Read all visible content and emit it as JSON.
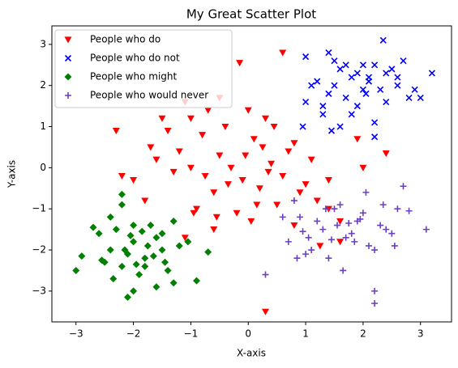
{
  "chart_data": {
    "type": "scatter",
    "title": "My Great Scatter Plot",
    "x_label": "X-axis",
    "y_label": "Y-axis",
    "xlim": [
      -3.42,
      3.54
    ],
    "ylim": [
      -3.75,
      3.45
    ],
    "xticks": [
      {
        "value": -3,
        "label": "−3"
      },
      {
        "value": -2,
        "label": "−2"
      },
      {
        "value": -1,
        "label": "−1"
      },
      0,
      1,
      2,
      3
    ],
    "yticks": [
      {
        "value": -3,
        "label": "−3"
      },
      {
        "value": -2,
        "label": "−2"
      },
      {
        "value": -1,
        "label": "−1"
      },
      0,
      1,
      2,
      3
    ],
    "legend": "upper left",
    "grid": false,
    "series": [
      {
        "name": "People who do",
        "color": "#ff0000",
        "marker": "v",
        "x": [
          -0.3,
          -0.5,
          -0.8,
          -1.0,
          -1.2,
          -0.1,
          0.2,
          0.4,
          0.6,
          0.8,
          1.0,
          1.2,
          -0.6,
          -0.9,
          -1.3,
          -1.6,
          -1.8,
          -2.0,
          -0.4,
          0.1,
          0.3,
          0.5,
          -0.2,
          -0.7,
          -1.1,
          -1.4,
          0.7,
          0.9,
          1.1,
          1.4,
          1.6,
          -0.05,
          0.15,
          0.35,
          -0.35,
          -0.55,
          -0.75,
          -0.95,
          0.0,
          0.25,
          0.6,
          0.3,
          -2.3,
          -0.15,
          1.9,
          2.4,
          -1.1,
          1.25,
          1.6,
          -2.2,
          -1.5,
          -0.6,
          0.05,
          2.0,
          1.4,
          -1.7,
          -0.5,
          0.45,
          0.8,
          -1.0
        ],
        "y": [
          0.0,
          0.3,
          0.8,
          1.2,
          0.4,
          -0.3,
          -0.5,
          0.1,
          -0.2,
          0.6,
          -0.4,
          -0.8,
          -0.6,
          -1.0,
          -0.1,
          0.2,
          -0.8,
          -0.3,
          1.0,
          0.7,
          1.2,
          -0.9,
          -1.1,
          1.4,
          1.6,
          0.9,
          0.4,
          -0.6,
          0.2,
          -1.0,
          -1.3,
          0.3,
          -0.9,
          -0.1,
          -0.4,
          -1.2,
          -0.2,
          -1.1,
          1.4,
          0.5,
          2.8,
          -3.5,
          0.9,
          2.55,
          0.7,
          0.35,
          -1.7,
          -1.9,
          -1.8,
          -0.2,
          1.2,
          -1.5,
          -1.3,
          0.0,
          -0.3,
          0.5,
          1.7,
          1.0,
          -1.4,
          0.0
        ]
      },
      {
        "name": "People who do not",
        "color": "#0000ff",
        "marker": "x",
        "x": [
          1.0,
          1.2,
          1.4,
          1.6,
          1.8,
          2.0,
          2.2,
          2.4,
          2.6,
          2.8,
          1.1,
          1.3,
          1.5,
          1.7,
          1.9,
          2.1,
          2.3,
          2.5,
          2.7,
          2.9,
          1.0,
          1.4,
          1.8,
          2.2,
          2.6,
          3.0,
          1.6,
          2.0,
          2.4,
          1.5,
          0.95,
          1.45,
          2.2,
          3.2,
          2.35,
          1.3,
          1.9,
          2.1,
          1.7,
          2.05
        ],
        "y": [
          1.6,
          2.1,
          1.8,
          2.4,
          2.2,
          1.9,
          2.5,
          2.3,
          2.0,
          1.7,
          2.0,
          1.5,
          2.6,
          1.7,
          2.3,
          2.1,
          1.9,
          2.4,
          2.6,
          1.9,
          2.7,
          2.8,
          1.3,
          1.1,
          2.2,
          1.7,
          1.0,
          2.5,
          1.6,
          2.0,
          1.0,
          0.9,
          0.75,
          2.3,
          3.1,
          1.3,
          1.5,
          2.2,
          2.5,
          1.8
        ]
      },
      {
        "name": "People who might",
        "color": "#008000",
        "marker": "D",
        "x": [
          -2.6,
          -2.4,
          -2.2,
          -2.0,
          -1.8,
          -1.6,
          -1.4,
          -1.2,
          -2.5,
          -2.3,
          -2.1,
          -1.9,
          -1.7,
          -1.5,
          -1.3,
          -2.4,
          -2.2,
          -2.0,
          -1.8,
          -1.6,
          -3.0,
          -2.9,
          -2.2,
          -2.1,
          -0.9,
          -0.7,
          -1.3,
          -1.5,
          -2.0,
          -1.75,
          -2.55,
          -2.35,
          -2.05,
          -1.85,
          -1.65,
          -1.45,
          -2.15,
          -1.95,
          -1.05,
          -2.7
        ],
        "y": [
          -1.6,
          -2.0,
          -2.4,
          -1.8,
          -2.2,
          -1.7,
          -2.5,
          -1.9,
          -2.3,
          -1.5,
          -2.1,
          -2.6,
          -1.4,
          -2.0,
          -2.8,
          -1.2,
          -0.9,
          -3.0,
          -2.4,
          -2.9,
          -2.5,
          -2.15,
          -0.65,
          -3.15,
          -2.75,
          -2.05,
          -1.3,
          -1.6,
          -1.4,
          -1.9,
          -2.25,
          -2.7,
          -1.65,
          -1.55,
          -2.15,
          -2.3,
          -2.0,
          -2.35,
          -1.8,
          -1.45
        ]
      },
      {
        "name": "People who would never",
        "color": "#6a3fc4",
        "marker": "+",
        "x": [
          0.7,
          0.9,
          1.1,
          1.3,
          1.5,
          1.7,
          1.9,
          2.1,
          2.3,
          2.5,
          0.8,
          1.0,
          1.2,
          1.4,
          1.6,
          1.8,
          2.0,
          2.2,
          2.4,
          2.6,
          0.6,
          1.05,
          1.55,
          2.05,
          2.55,
          0.85,
          1.35,
          1.85,
          2.35,
          1.65,
          2.2,
          0.3,
          2.2,
          3.1,
          2.7,
          2.8,
          0.95,
          1.75,
          1.45,
          1.95
        ],
        "y": [
          -1.8,
          -1.2,
          -2.0,
          -1.5,
          -1.0,
          -1.7,
          -1.3,
          -1.9,
          -1.4,
          -1.6,
          -0.8,
          -2.1,
          -1.3,
          -2.2,
          -0.9,
          -1.6,
          -1.1,
          -2.0,
          -1.5,
          -1.0,
          -1.2,
          -1.7,
          -1.4,
          -0.6,
          -1.9,
          -2.2,
          -1.0,
          -1.8,
          -0.9,
          -2.5,
          -3.3,
          -2.6,
          -3.0,
          -1.5,
          -0.45,
          -1.05,
          -1.55,
          -1.35,
          -1.75,
          -1.25
        ]
      }
    ]
  }
}
